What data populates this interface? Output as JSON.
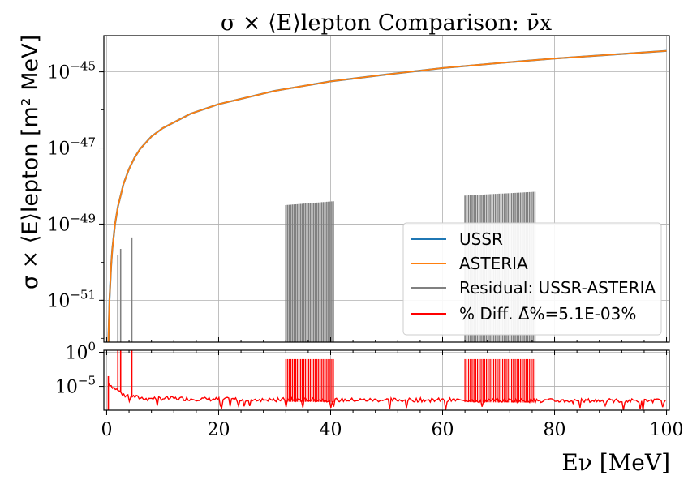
{
  "chart_data": [
    {
      "type": "line",
      "title": "σ × ⟨E⟩lepton Comparison: ν̄x",
      "ylabel": "σ × ⟨E⟩lepton [m² MeV]",
      "xlim": [
        -0.5,
        100.5
      ],
      "ylim_exp": [
        -52.1,
        -44.05
      ],
      "yscale": "log",
      "ytick_labels": [
        "10−45",
        "10−47",
        "10−49",
        "10−51"
      ],
      "ytick_exponents": [
        -45,
        -47,
        -49,
        -51
      ],
      "grid": true,
      "legend_position": "lower-right",
      "series": [
        {
          "name": "USSR",
          "color": "#1f77b4",
          "x": [
            0.3,
            0.5,
            0.8,
            1,
            1.5,
            2,
            3,
            4,
            5,
            6,
            8,
            10,
            15,
            20,
            30,
            40,
            50,
            60,
            70,
            80,
            90,
            100
          ],
          "log10_y": [
            -52.1,
            -51.0,
            -50.1,
            -49.67,
            -49.0,
            -48.55,
            -47.95,
            -47.55,
            -47.25,
            -47.02,
            -46.7,
            -46.48,
            -46.1,
            -45.85,
            -45.5,
            -45.25,
            -45.07,
            -44.9,
            -44.77,
            -44.65,
            -44.55,
            -44.45
          ]
        },
        {
          "name": "ASTERIA",
          "color": "#ff7f0e",
          "x": [
            0.3,
            0.5,
            0.8,
            1,
            1.5,
            2,
            3,
            4,
            5,
            6,
            8,
            10,
            15,
            20,
            30,
            40,
            50,
            60,
            70,
            80,
            90,
            100
          ],
          "log10_y": [
            -52.1,
            -51.0,
            -50.1,
            -49.67,
            -49.0,
            -48.55,
            -47.95,
            -47.55,
            -47.25,
            -47.02,
            -46.7,
            -46.48,
            -46.1,
            -45.85,
            -45.5,
            -45.25,
            -45.07,
            -44.9,
            -44.77,
            -44.65,
            -44.55,
            -44.45
          ]
        },
        {
          "name": "Residual: USSR-ASTERIA",
          "color": "#808080",
          "spikes": [
            {
              "x": 0.5,
              "log10_y": -51.4
            },
            {
              "x": 2.0,
              "log10_y": -49.8
            },
            {
              "x": 2.5,
              "log10_y": -49.65
            },
            {
              "x": 4.5,
              "log10_y": -49.35
            }
          ],
          "bands": [
            {
              "x_start": 32,
              "x_end": 40.5,
              "count": 30,
              "log10_y_start": -48.5,
              "log10_y_end": -48.4
            },
            {
              "x_start": 64,
              "x_end": 76.5,
              "count": 40,
              "log10_y_start": -48.25,
              "log10_y_end": -48.15
            }
          ]
        }
      ]
    },
    {
      "type": "line",
      "xlabel": "Eν [MeV]",
      "xlim": [
        -0.5,
        100.5
      ],
      "ylim_exp": [
        -8.5,
        0.3
      ],
      "yscale": "log",
      "ytick_labels": [
        "100",
        "10−5"
      ],
      "ytick_exponents": [
        0,
        -5
      ],
      "xticks": [
        0,
        20,
        40,
        60,
        80,
        100
      ],
      "xtick_labels": [
        "0",
        "20",
        "40",
        "60",
        "80",
        "100"
      ],
      "grid": true,
      "series": [
        {
          "name": "% Diff. Δ̄%=5.1E-03%",
          "color": "#ff0000",
          "baseline_log10": [
            [
              0.3,
              -4.5
            ],
            [
              1,
              -5.0
            ],
            [
              3,
              -6.2
            ],
            [
              6,
              -6.7
            ],
            [
              20,
              -6.9
            ],
            [
              40,
              -7.0
            ],
            [
              60,
              -7.0
            ],
            [
              80,
              -7.1
            ],
            [
              100,
              -7.1
            ]
          ],
          "spikes_x": [
            2.0,
            2.5,
            4.5
          ],
          "bands": [
            {
              "x_start": 32,
              "x_end": 40.5,
              "count": 30,
              "top_log10": -1.0
            },
            {
              "x_start": 64,
              "x_end": 76.5,
              "count": 40,
              "top_log10": -1.0
            }
          ]
        }
      ]
    }
  ]
}
